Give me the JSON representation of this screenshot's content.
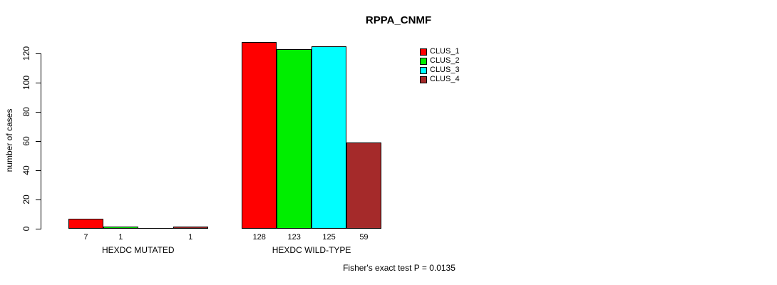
{
  "title": "RPPA_CNMF",
  "footer": "Fisher's exact test P = 0.0135",
  "chart_data": {
    "type": "bar",
    "title": "RPPA_CNMF",
    "xlabel": "",
    "ylabel": "number of cases",
    "ylim": [
      0,
      120
    ],
    "yticks": [
      0,
      20,
      40,
      60,
      80,
      100,
      120
    ],
    "grid": false,
    "legend_position": "top-right",
    "categories": [
      "HEXDC MUTATED",
      "HEXDC WILD-TYPE"
    ],
    "series": [
      {
        "name": "CLUS_1",
        "color": "#FF0000",
        "values": [
          7,
          128
        ]
      },
      {
        "name": "CLUS_2",
        "color": "#00EE00",
        "values": [
          1,
          123
        ]
      },
      {
        "name": "CLUS_3",
        "color": "#00FFFF",
        "values": [
          0,
          125
        ]
      },
      {
        "name": "CLUS_4",
        "color": "#A52A2A",
        "values": [
          1,
          59
        ]
      }
    ],
    "bar_value_labels": [
      [
        "7",
        "1",
        "",
        "1"
      ],
      [
        "128",
        "123",
        "125",
        "59"
      ]
    ],
    "annotation": "Fisher's exact test P = 0.0135"
  }
}
